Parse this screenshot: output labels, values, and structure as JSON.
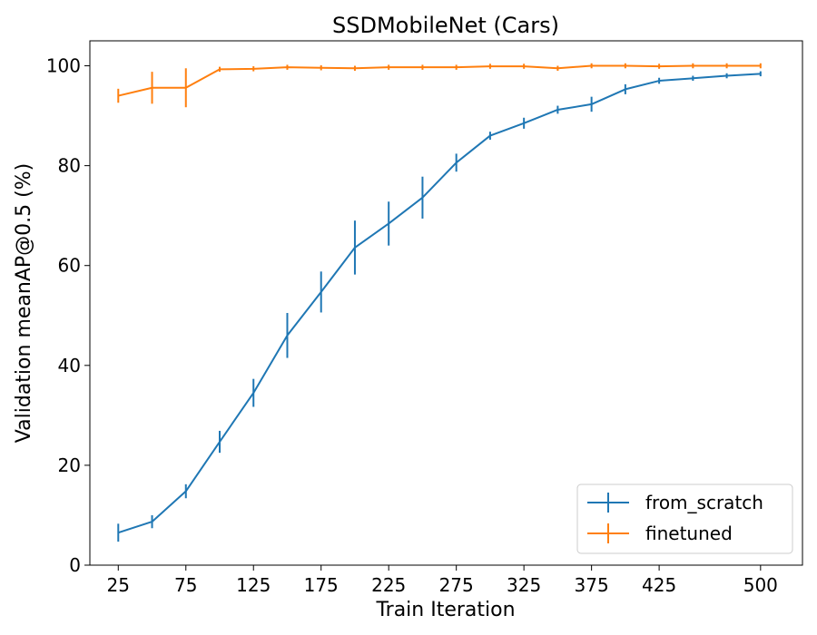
{
  "chart_data": {
    "type": "line",
    "title": "SSDMobileNet (Cars)",
    "xlabel": "Train Iteration",
    "ylabel": "Validation meanAP@0.5 (%)",
    "xlim": [
      4,
      531
    ],
    "ylim": [
      0,
      105
    ],
    "xticks": [
      25,
      75,
      125,
      175,
      225,
      275,
      325,
      375,
      425,
      500
    ],
    "yticks": [
      0,
      20,
      40,
      60,
      80,
      100
    ],
    "grid": false,
    "legend_position": "bottom-right",
    "series": [
      {
        "name": "from_scratch",
        "color": "#1f77b4",
        "x": [
          25,
          50,
          75,
          100,
          125,
          150,
          175,
          200,
          225,
          250,
          275,
          300,
          325,
          350,
          375,
          400,
          425,
          450,
          475,
          500
        ],
        "y": [
          6.5,
          8.7,
          14.8,
          24.7,
          34.5,
          46.0,
          54.7,
          63.6,
          68.4,
          73.6,
          80.6,
          86.0,
          88.5,
          91.2,
          92.3,
          95.3,
          97.0,
          97.5,
          98.0,
          98.4
        ],
        "err": [
          1.8,
          1.3,
          1.4,
          2.2,
          2.8,
          4.5,
          4.1,
          5.4,
          4.4,
          4.2,
          1.8,
          0.8,
          1.1,
          0.8,
          1.5,
          1.0,
          0.6,
          0.3,
          0.2,
          0.1
        ]
      },
      {
        "name": "finetuned",
        "color": "#ff7f0e",
        "x": [
          25,
          50,
          75,
          100,
          125,
          150,
          175,
          200,
          225,
          250,
          275,
          300,
          325,
          350,
          375,
          400,
          425,
          450,
          475,
          500
        ],
        "y": [
          94.0,
          95.6,
          95.6,
          99.3,
          99.4,
          99.7,
          99.6,
          99.5,
          99.7,
          99.7,
          99.7,
          99.9,
          99.9,
          99.5,
          100.0,
          100.0,
          99.9,
          100.0,
          100.0,
          100.0
        ],
        "err": [
          1.4,
          3.2,
          3.9,
          0.0,
          0.0,
          0.0,
          0.0,
          0.3,
          0.0,
          0.0,
          0.0,
          0.0,
          0.0,
          0.5,
          0.0,
          0.0,
          0.0,
          0.0,
          0.0,
          0.0
        ]
      }
    ]
  }
}
